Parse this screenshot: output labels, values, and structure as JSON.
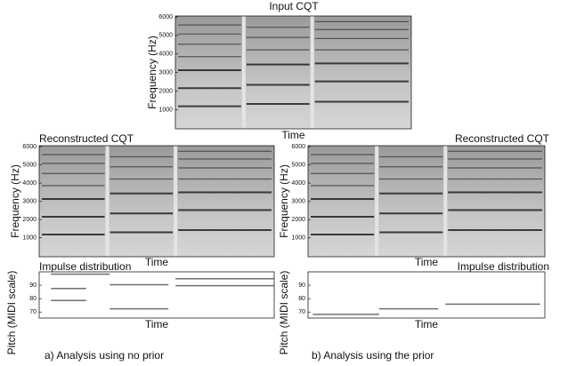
{
  "panels": [
    {
      "title": "Input CQT",
      "ylabel": "Frequency (Hz)",
      "xlabel": "Time",
      "yticks": [
        1000,
        2000,
        3000,
        4000,
        5000,
        6000
      ]
    },
    {
      "title": "Reconstructed CQT",
      "ylabel": "Frequency (Hz)",
      "xlabel": "Time",
      "yticks": [
        1000,
        2000,
        3000,
        4000,
        5000,
        6000
      ]
    },
    {
      "title": "Reconstructed CQT",
      "ylabel": "Frequency (Hz)",
      "xlabel": "Time",
      "yticks": [
        1000,
        2000,
        3000,
        4000,
        5000,
        6000
      ]
    },
    {
      "title": "Impulse distribution",
      "ylabel": "Pitch (MIDI scale)",
      "xlabel": "Time",
      "yticks": [
        70,
        80,
        90
      ]
    },
    {
      "title": "Impulse distribution",
      "ylabel": "Pitch (MIDI scale)",
      "xlabel": "Time",
      "yticks": [
        70,
        80,
        90
      ]
    }
  ],
  "captions": [
    "a) Analysis using no prior",
    "b) Analysis using the prior"
  ]
}
